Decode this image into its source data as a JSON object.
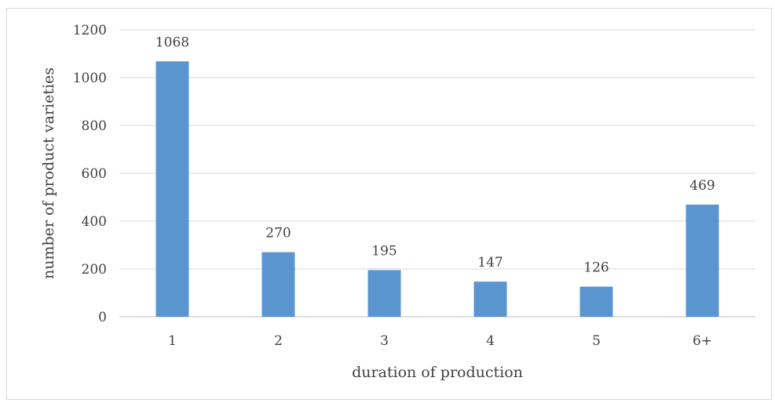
{
  "chart_data": {
    "type": "bar",
    "categories": [
      "1",
      "2",
      "3",
      "4",
      "5",
      "6+"
    ],
    "values": [
      1068,
      270,
      195,
      147,
      126,
      469
    ],
    "data_labels": [
      "1068",
      "270",
      "195",
      "147",
      "126",
      "469"
    ],
    "xlabel": "duration of production",
    "ylabel": "number of product varieties",
    "ylim": [
      0,
      1200
    ],
    "yticks": [
      0,
      200,
      400,
      600,
      800,
      1000,
      1200
    ],
    "ytick_labels": [
      "0",
      "200",
      "400",
      "600",
      "800",
      "1000",
      "1200"
    ],
    "grid": true,
    "legend": "none",
    "bar_color": "#5b95cf",
    "grid_color": "#d9d9d9"
  }
}
